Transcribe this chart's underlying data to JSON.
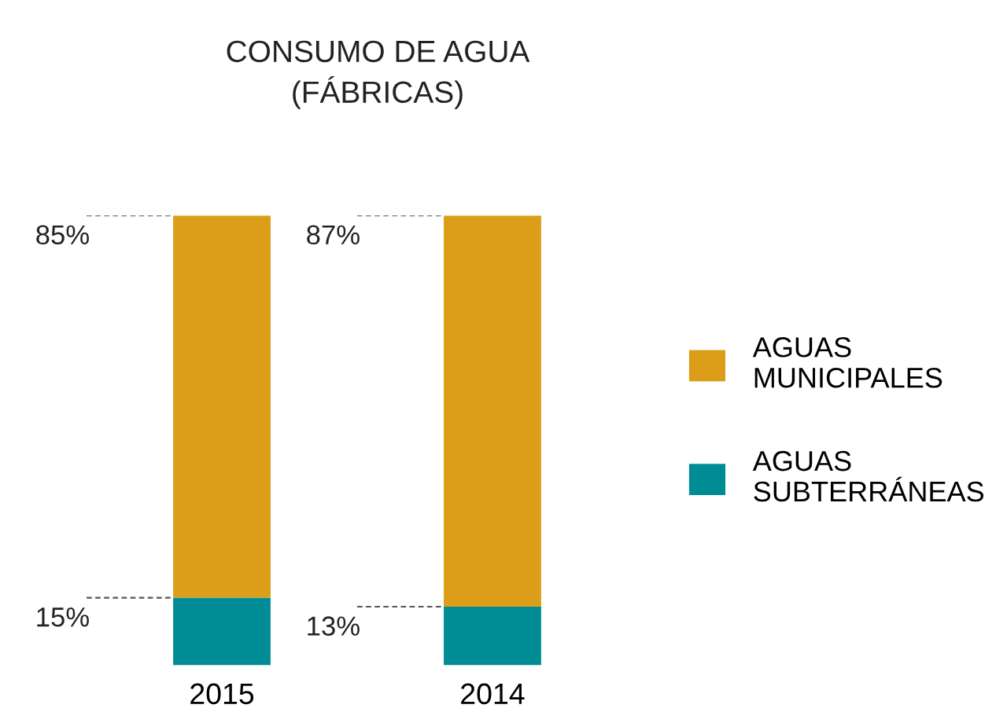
{
  "chart_data": {
    "type": "bar",
    "title": "CONSUMO DE AGUA\n(FÁBRICAS)",
    "categories": [
      "2015",
      "2014"
    ],
    "stacked": true,
    "legend": "right",
    "series": [
      {
        "name": "AGUAS\nSUBTERRÁNEAS",
        "color": "#008c95",
        "values": [
          15,
          13
        ],
        "value_labels": [
          "15%",
          "13%"
        ]
      },
      {
        "name": "AGUAS\nMUNICIPALES",
        "color": "#dc9e18",
        "values": [
          85,
          87
        ],
        "value_labels": [
          "85%",
          "87%"
        ]
      }
    ]
  }
}
